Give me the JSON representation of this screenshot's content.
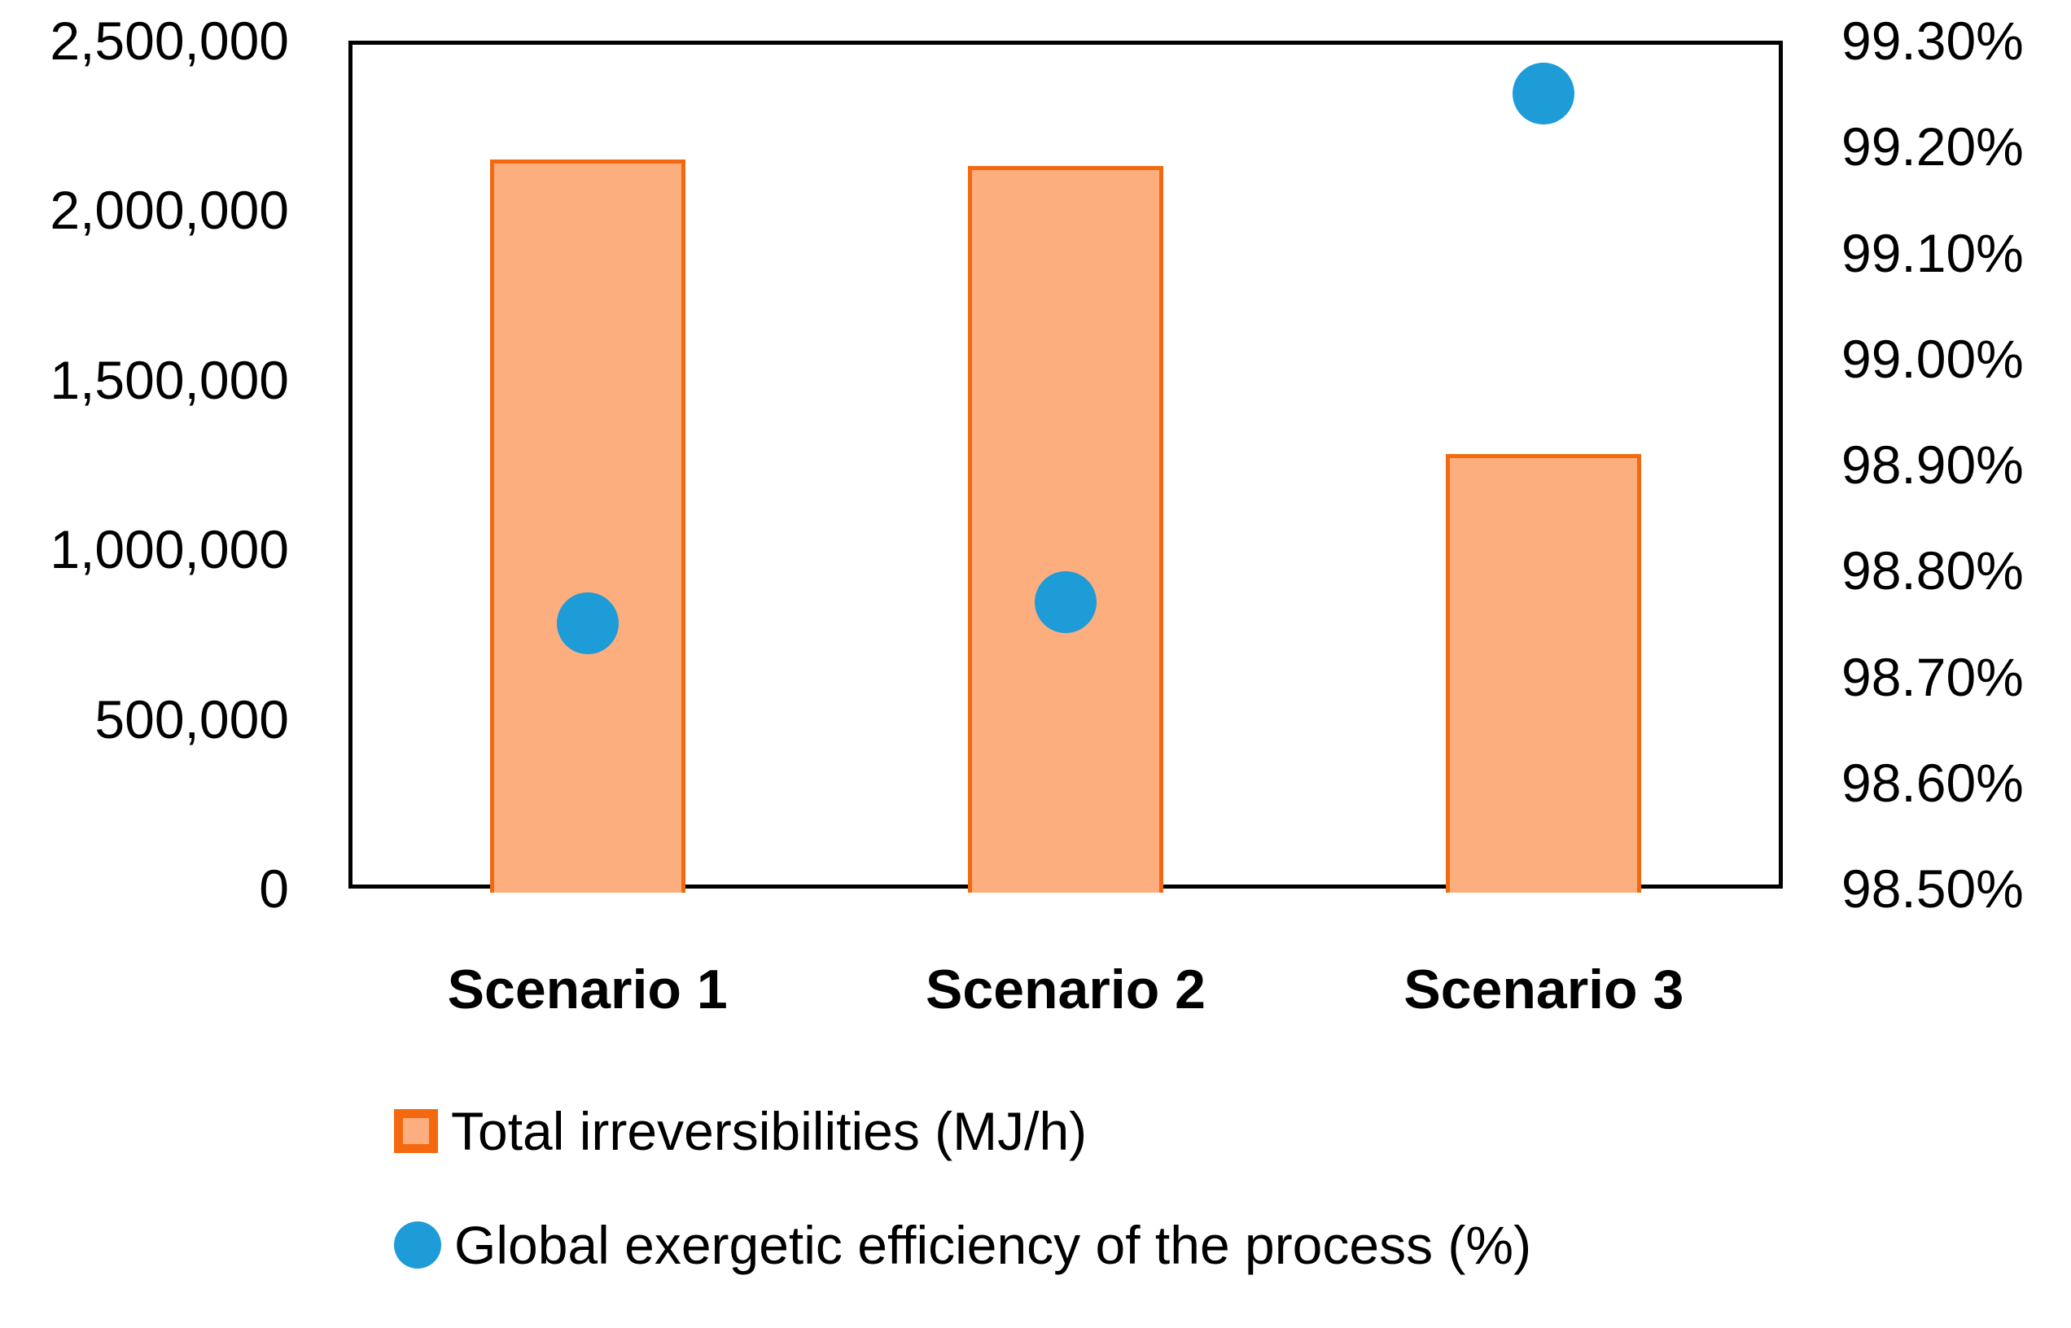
{
  "chart_data": {
    "type": "combo",
    "title": "",
    "xlabel": "",
    "ylabel": "",
    "grid": false,
    "categories": [
      "Scenario 1",
      "Scenario 2",
      "Scenario 3"
    ],
    "series": [
      {
        "name": "Total irreversibilities (MJ/h)",
        "type": "bar",
        "axis": "left",
        "values": [
          2150000,
          2130000,
          1280000
        ],
        "fill": "#FCAE7F",
        "border": "#F4690F"
      },
      {
        "name": "Global exergetic efficiency of the process (%)",
        "type": "scatter",
        "axis": "right",
        "values": [
          98.75,
          98.77,
          99.25
        ],
        "fill": "#1E9CD7"
      }
    ],
    "left_axis": {
      "min": 0,
      "max": 2500000,
      "step": 500000,
      "tick_labels": [
        "2,500,000",
        "2,000,000",
        "1,500,000",
        "1,000,000",
        "500,000",
        "0"
      ]
    },
    "right_axis": {
      "min": 98.5,
      "max": 99.3,
      "step": 0.1,
      "tick_labels": [
        "99.30%",
        "99.20%",
        "99.10%",
        "99.00%",
        "98.90%",
        "98.80%",
        "98.70%",
        "98.60%",
        "98.50%"
      ]
    },
    "legend": {
      "position": "bottom-left",
      "items": [
        {
          "label": "Total irreversibilities (MJ/h)",
          "marker": "square",
          "marker_fill": "#FCAE7F",
          "marker_border": "#F4690F"
        },
        {
          "label": "Global exergetic efficiency of the process (%)",
          "marker": "circle",
          "marker_fill": "#1E9CD7"
        }
      ]
    }
  },
  "colors": {
    "bar_fill": "#FCAE7F",
    "bar_border": "#F4690F",
    "dot_fill": "#1E9CD7",
    "plot_border": "#000000",
    "text": "#000000",
    "background": "#FFFFFF"
  }
}
